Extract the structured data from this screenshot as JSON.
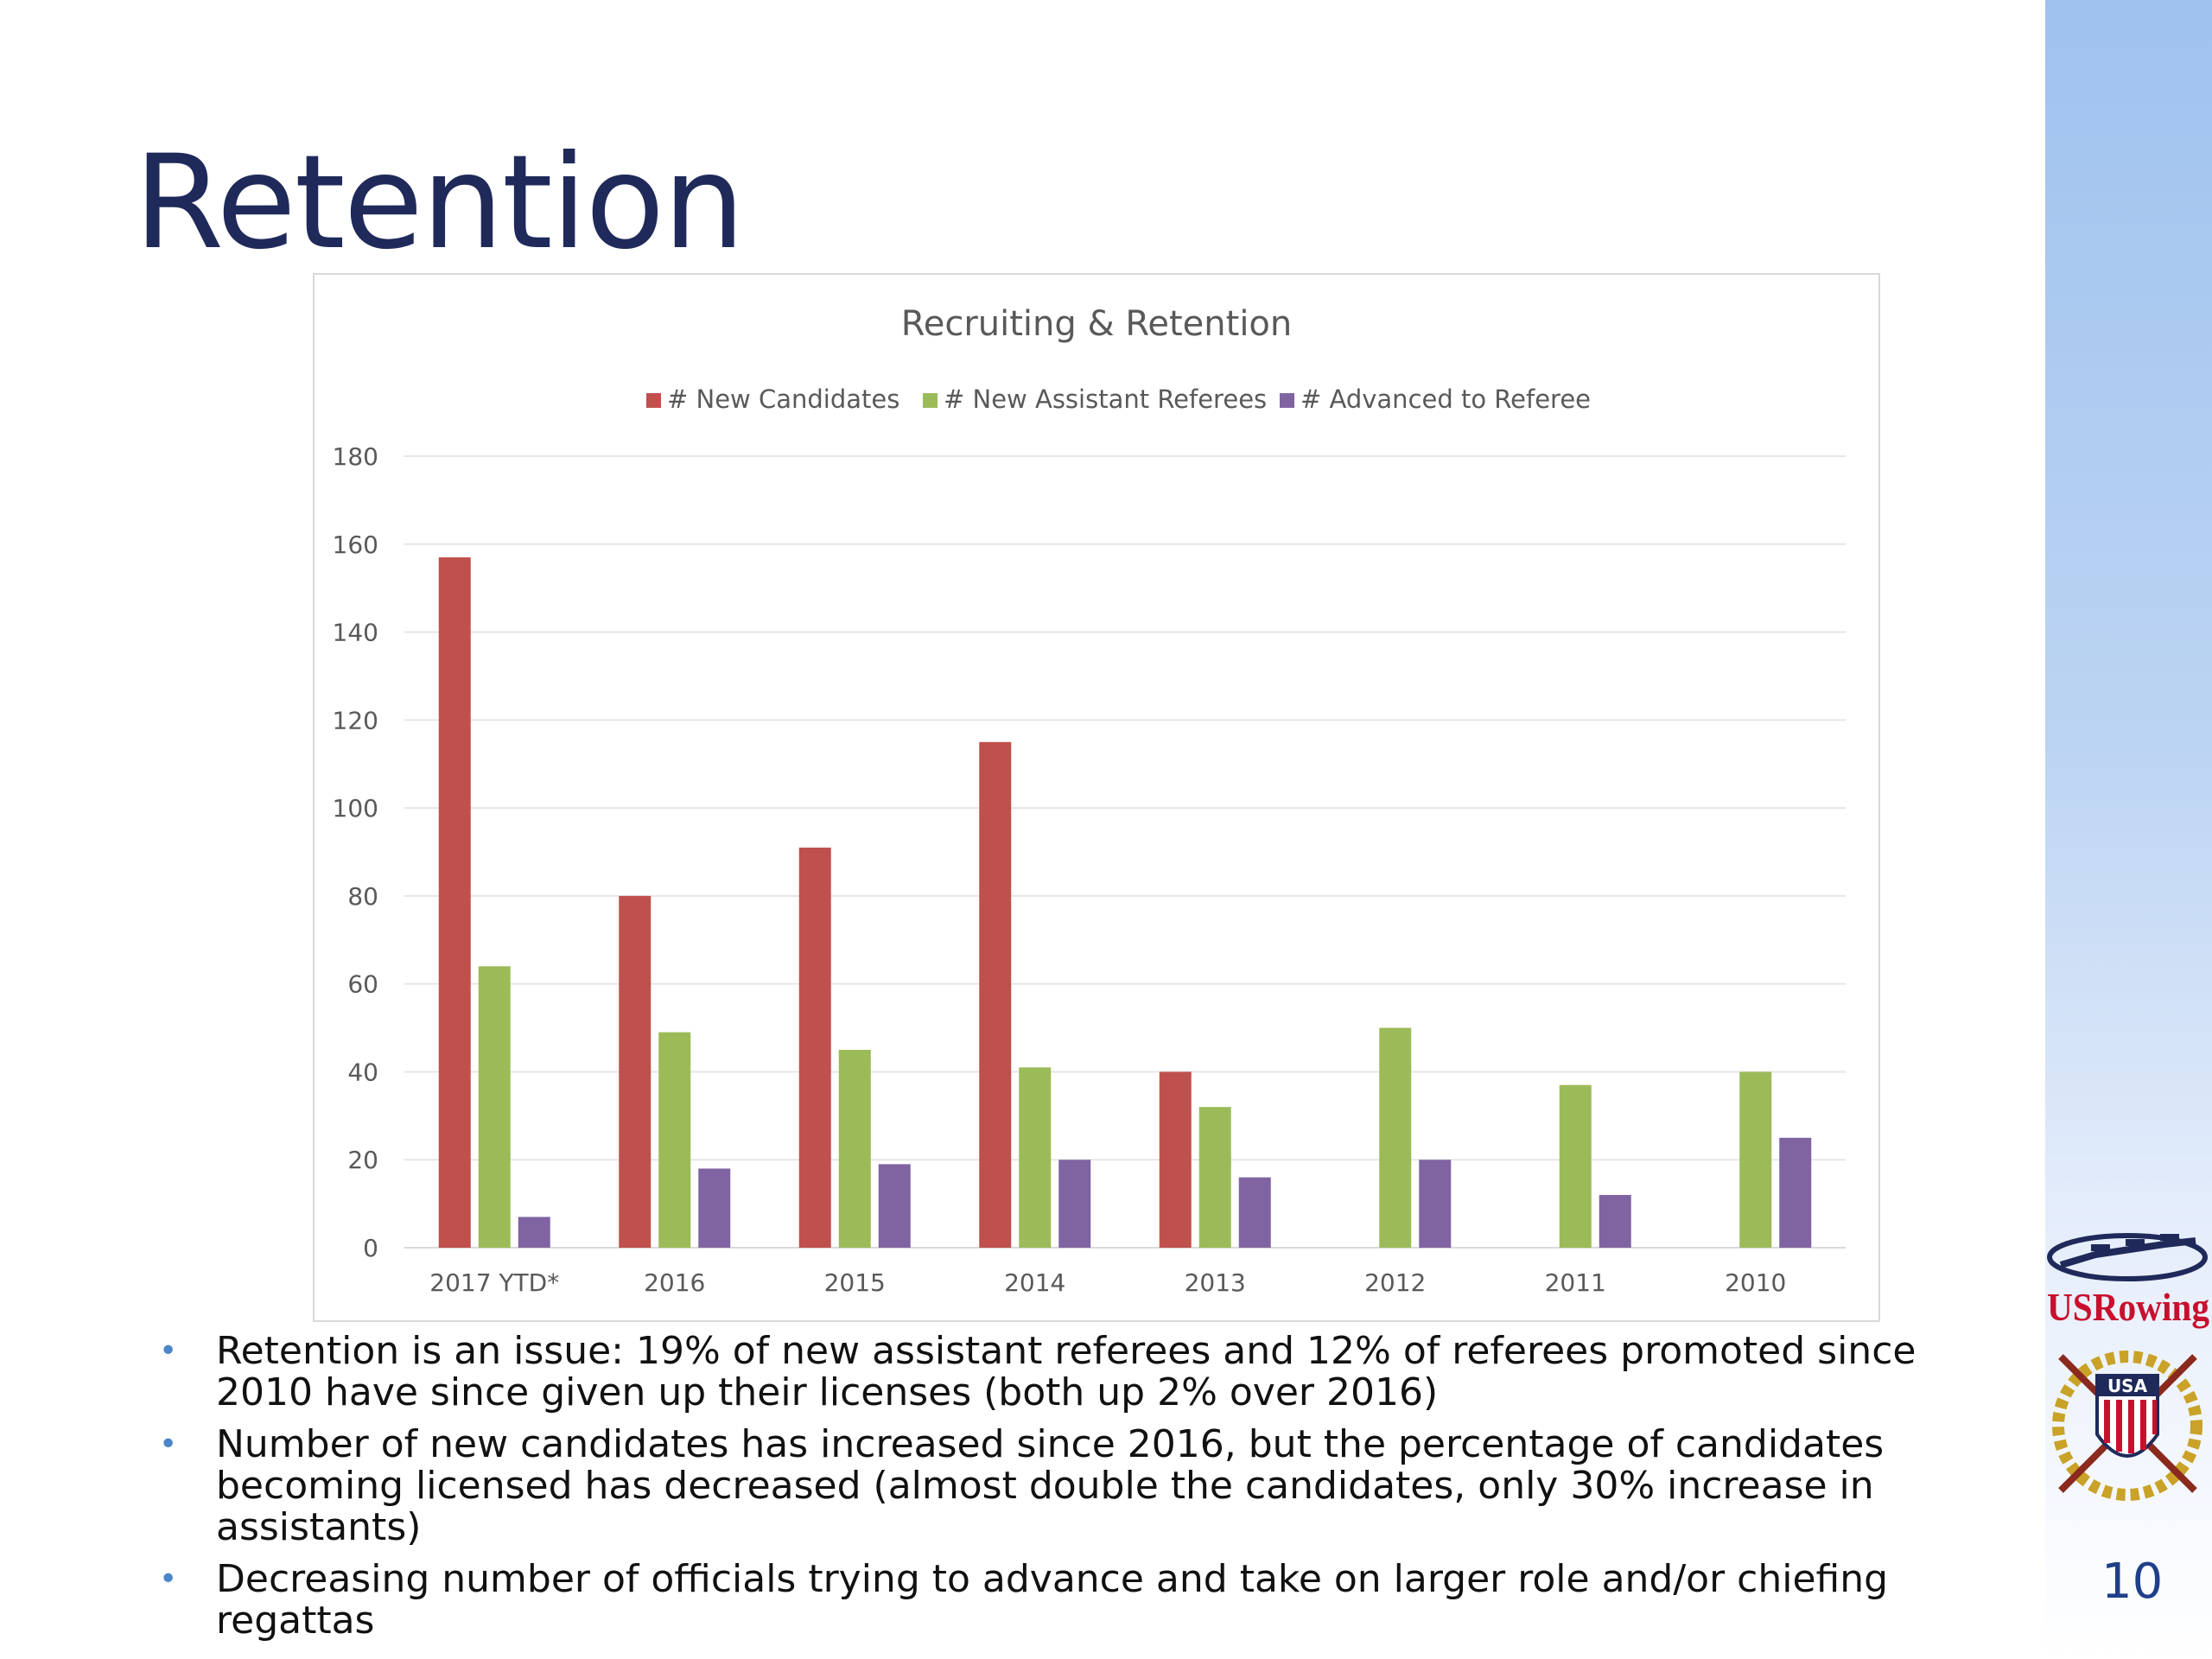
{
  "slide": {
    "title": "Retention",
    "page_number": "10"
  },
  "bullets": [
    "Retention is an issue:  19% of new assistant referees and 12% of referees promoted since 2010 have since given up their licenses (both up 2% over 2016)",
    "Number of new candidates has increased since 2016, but the percentage of candidates becoming licensed has decreased (almost double the candidates, only 30% increase in assistants)",
    "Decreasing number of officials trying to advance and take on larger role and/or chiefing regattas"
  ],
  "logo": {
    "brand": "USRowing",
    "shield_text": "USA"
  },
  "chart_data": {
    "type": "bar",
    "title": "Recruiting & Retention",
    "categories": [
      "2017 YTD*",
      "2016",
      "2015",
      "2014",
      "2013",
      "2012",
      "2011",
      "2010"
    ],
    "series": [
      {
        "name": "# New Candidates",
        "color": "#c0504d",
        "values": [
          157,
          80,
          91,
          115,
          40,
          0,
          0,
          0
        ]
      },
      {
        "name": "# New Assistant Referees",
        "color": "#9bbb59",
        "values": [
          64,
          49,
          45,
          41,
          32,
          50,
          37,
          40
        ]
      },
      {
        "name": "# Advanced to Referee",
        "color": "#8064a2",
        "values": [
          7,
          18,
          19,
          20,
          16,
          20,
          12,
          25
        ]
      }
    ],
    "ylim": [
      0,
      180
    ],
    "yticks": [
      0,
      20,
      40,
      60,
      80,
      100,
      120,
      140,
      160,
      180
    ],
    "legend_position": "top",
    "grid": true
  }
}
